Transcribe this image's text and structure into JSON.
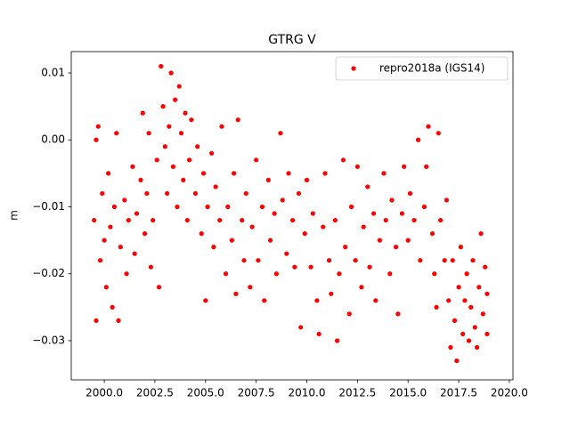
{
  "chart_data": {
    "type": "scatter",
    "title": "GTRG V",
    "ylabel": "m",
    "xlim": [
      1998.37,
      2020.18
    ],
    "ylim": [
      -0.03585,
      0.01319
    ],
    "xticks": [
      {
        "value": 2000,
        "label": "2000.0"
      },
      {
        "value": 2002.5,
        "label": "2002.5"
      },
      {
        "value": 2005,
        "label": "2005.0"
      },
      {
        "value": 2007.5,
        "label": "2007.5"
      },
      {
        "value": 2010,
        "label": "2010.0"
      },
      {
        "value": 2012.5,
        "label": "2012.5"
      },
      {
        "value": 2015,
        "label": "2015.0"
      },
      {
        "value": 2017.5,
        "label": "2017.5"
      },
      {
        "value": 2020,
        "label": "2020.0"
      }
    ],
    "yticks": [
      {
        "value": -0.03,
        "label": "−0.03"
      },
      {
        "value": -0.02,
        "label": "−0.02"
      },
      {
        "value": -0.01,
        "label": "−0.01"
      },
      {
        "value": 0,
        "label": "0.00"
      },
      0.01
    ],
    "legend": "upper right",
    "series": [
      {
        "name": "repro2018a (IGS14)",
        "color": "#ff0000",
        "x": [
          1999.5,
          1999.6,
          1999.6,
          1999.7,
          1999.8,
          1999.9,
          2000.0,
          2000.1,
          2000.2,
          2000.3,
          2000.4,
          2000.5,
          2000.6,
          2000.7,
          2000.8,
          2001.0,
          2001.1,
          2001.2,
          2001.4,
          2001.5,
          2001.6,
          2001.8,
          2001.9,
          2002.0,
          2002.1,
          2002.2,
          2002.3,
          2002.4,
          2002.6,
          2002.7,
          2002.8,
          2002.9,
          2003.0,
          2003.1,
          2003.2,
          2003.3,
          2003.4,
          2003.5,
          2003.6,
          2003.7,
          2003.8,
          2003.9,
          2004.0,
          2004.1,
          2004.2,
          2004.3,
          2004.5,
          2004.6,
          2004.8,
          2004.9,
          2005.0,
          2005.1,
          2005.3,
          2005.4,
          2005.5,
          2005.7,
          2005.8,
          2006.0,
          2006.1,
          2006.3,
          2006.4,
          2006.5,
          2006.6,
          2006.8,
          2006.9,
          2007.0,
          2007.2,
          2007.3,
          2007.5,
          2007.6,
          2007.8,
          2007.9,
          2008.1,
          2008.2,
          2008.4,
          2008.5,
          2008.7,
          2008.8,
          2009.0,
          2009.1,
          2009.3,
          2009.4,
          2009.6,
          2009.7,
          2009.9,
          2010.0,
          2010.2,
          2010.3,
          2010.5,
          2010.6,
          2010.8,
          2010.9,
          2011.1,
          2011.2,
          2011.4,
          2011.5,
          2011.6,
          2011.8,
          2011.9,
          2012.1,
          2012.2,
          2012.4,
          2012.5,
          2012.7,
          2012.8,
          2013.0,
          2013.1,
          2013.3,
          2013.4,
          2013.6,
          2013.8,
          2013.9,
          2014.1,
          2014.2,
          2014.4,
          2014.5,
          2014.7,
          2014.8,
          2015.0,
          2015.1,
          2015.3,
          2015.5,
          2015.6,
          2015.8,
          2015.9,
          2016.0,
          2016.2,
          2016.3,
          2016.4,
          2016.5,
          2016.6,
          2016.8,
          2016.9,
          2017.0,
          2017.1,
          2017.2,
          2017.3,
          2017.4,
          2017.5,
          2017.6,
          2017.7,
          2017.8,
          2017.9,
          2018.0,
          2018.1,
          2018.2,
          2018.3,
          2018.4,
          2018.5,
          2018.6,
          2018.7,
          2018.8,
          2018.9,
          2018.9
        ],
        "values": [
          -0.012,
          -0.027,
          0.0,
          0.002,
          -0.018,
          -0.008,
          -0.015,
          -0.022,
          -0.005,
          -0.013,
          -0.025,
          -0.01,
          0.001,
          -0.027,
          -0.016,
          -0.009,
          -0.02,
          -0.012,
          -0.004,
          -0.017,
          -0.011,
          -0.006,
          0.004,
          -0.014,
          -0.008,
          0.001,
          -0.019,
          -0.012,
          -0.003,
          -0.022,
          0.011,
          0.005,
          -0.001,
          -0.008,
          0.002,
          0.01,
          -0.004,
          0.006,
          -0.01,
          0.008,
          0.001,
          -0.006,
          0.004,
          -0.012,
          -0.003,
          0.003,
          -0.008,
          -0.001,
          -0.014,
          -0.005,
          -0.024,
          -0.01,
          -0.002,
          -0.016,
          -0.007,
          -0.012,
          0.002,
          -0.02,
          -0.01,
          -0.015,
          -0.005,
          -0.023,
          0.003,
          -0.012,
          -0.018,
          -0.008,
          -0.022,
          -0.013,
          -0.003,
          -0.018,
          -0.01,
          -0.024,
          -0.006,
          -0.015,
          -0.011,
          -0.02,
          0.001,
          -0.009,
          -0.017,
          -0.005,
          -0.012,
          -0.019,
          -0.008,
          -0.028,
          -0.014,
          -0.006,
          -0.019,
          -0.011,
          -0.024,
          -0.029,
          -0.013,
          -0.005,
          -0.018,
          -0.023,
          -0.012,
          -0.03,
          -0.02,
          -0.003,
          -0.016,
          -0.026,
          -0.01,
          -0.018,
          -0.004,
          -0.022,
          -0.013,
          -0.007,
          -0.019,
          -0.011,
          -0.024,
          -0.015,
          -0.005,
          -0.012,
          -0.02,
          -0.009,
          -0.016,
          -0.026,
          -0.011,
          -0.004,
          -0.015,
          -0.008,
          -0.012,
          0.0,
          -0.018,
          -0.01,
          -0.004,
          0.002,
          -0.014,
          -0.02,
          -0.025,
          0.001,
          -0.012,
          -0.018,
          -0.009,
          -0.024,
          -0.031,
          -0.018,
          -0.027,
          -0.033,
          -0.022,
          -0.016,
          -0.029,
          -0.024,
          -0.02,
          -0.03,
          -0.025,
          -0.018,
          -0.028,
          -0.031,
          -0.022,
          -0.014,
          -0.026,
          -0.019,
          -0.023,
          -0.029
        ]
      }
    ]
  }
}
